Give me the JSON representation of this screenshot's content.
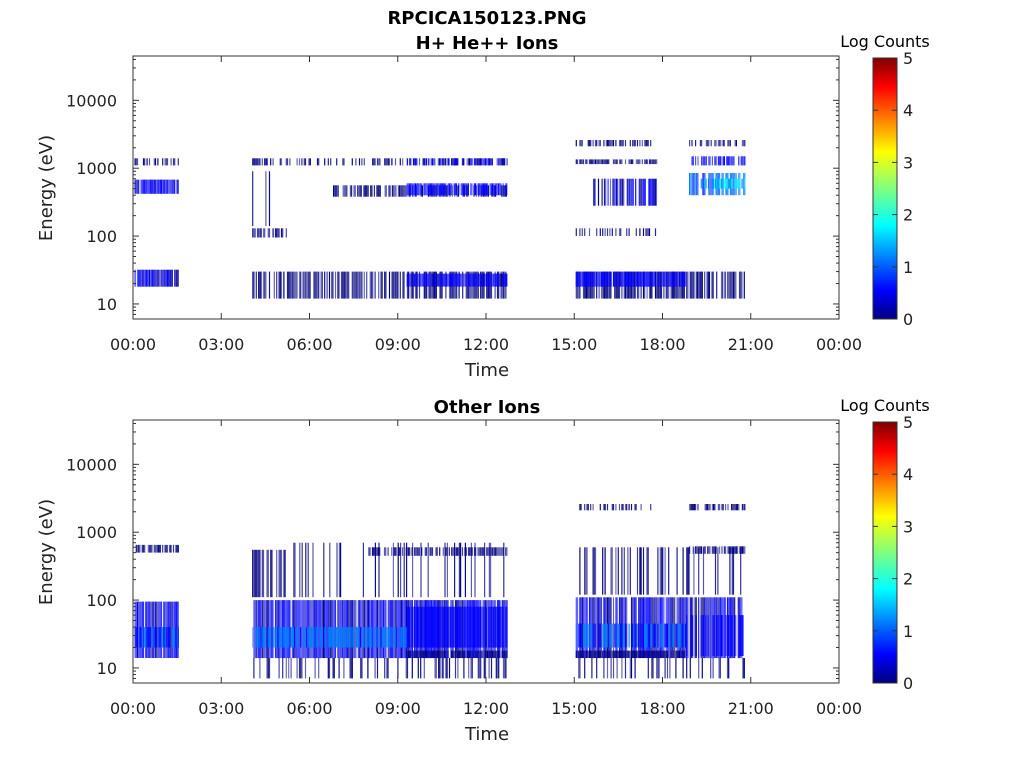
{
  "figure_title": "RPCICA150123.PNG",
  "colormap": [
    "#00007f",
    "#0000ff",
    "#007fff",
    "#00ffff",
    "#7fff7f",
    "#ffff00",
    "#ff7f00",
    "#ff0000",
    "#7f0000"
  ],
  "chart_data": [
    {
      "type": "heatmap",
      "title": "H+ He++ Ions",
      "xlabel": "Time",
      "ylabel": "Energy (eV)",
      "x_ticks": [
        "00:00",
        "03:00",
        "06:00",
        "09:00",
        "12:00",
        "15:00",
        "18:00",
        "21:00",
        "00:00"
      ],
      "x_range_hours": [
        0,
        24
      ],
      "y_ticks": [
        "10",
        "100",
        "1000",
        "10000"
      ],
      "y_scale": "log",
      "y_range": [
        6,
        45000
      ],
      "colorbar": {
        "label": "Log Counts",
        "ticks": [
          "0",
          "1",
          "2",
          "3",
          "4",
          "5"
        ],
        "range": [
          0,
          5
        ]
      },
      "grid": false,
      "blocks": [
        {
          "t": [
            0.05,
            1.55
          ],
          "e": [
            18,
            32
          ],
          "v": 0.35,
          "density": 0.95
        },
        {
          "t": [
            0.05,
            1.55
          ],
          "e": [
            420,
            680
          ],
          "v": 0.4,
          "density": 0.9
        },
        {
          "t": [
            0.05,
            1.55
          ],
          "e": [
            1100,
            1400
          ],
          "v": 0.2,
          "density": 0.6
        },
        {
          "t": [
            4.05,
            12.7
          ],
          "e": [
            12,
            30
          ],
          "v": 0.2,
          "density": 0.7
        },
        {
          "t": [
            9.3,
            12.7
          ],
          "e": [
            18,
            28
          ],
          "v": 0.4,
          "density": 0.95
        },
        {
          "t": [
            4.05,
            5.2
          ],
          "e": [
            95,
            130
          ],
          "v": 0.2,
          "density": 0.6
        },
        {
          "t": [
            4.05,
            4.9
          ],
          "e": [
            140,
            900
          ],
          "v": 0.1,
          "density": 0.25
        },
        {
          "t": [
            6.8,
            12.7
          ],
          "e": [
            380,
            560
          ],
          "v": 0.25,
          "density": 0.7
        },
        {
          "t": [
            9.3,
            12.7
          ],
          "e": [
            400,
            600
          ],
          "v": 0.45,
          "density": 0.9
        },
        {
          "t": [
            4.05,
            12.7
          ],
          "e": [
            1100,
            1400
          ],
          "v": 0.15,
          "density": 0.4
        },
        {
          "t": [
            9.3,
            12.7
          ],
          "e": [
            1100,
            1400
          ],
          "v": 0.35,
          "density": 0.7
        },
        {
          "t": [
            15.05,
            20.8
          ],
          "e": [
            12,
            30
          ],
          "v": 0.25,
          "density": 0.8
        },
        {
          "t": [
            15.05,
            18.8
          ],
          "e": [
            18,
            30
          ],
          "v": 0.45,
          "density": 0.95
        },
        {
          "t": [
            15.05,
            17.8
          ],
          "e": [
            100,
            130
          ],
          "v": 0.15,
          "density": 0.4
        },
        {
          "t": [
            15.6,
            17.8
          ],
          "e": [
            280,
            700
          ],
          "v": 0.35,
          "density": 0.6
        },
        {
          "t": [
            15.05,
            17.8
          ],
          "e": [
            1150,
            1350
          ],
          "v": 0.2,
          "density": 0.7
        },
        {
          "t": [
            15.05,
            17.8
          ],
          "e": [
            2100,
            2600
          ],
          "v": 0.15,
          "density": 0.6
        },
        {
          "t": [
            18.9,
            20.8
          ],
          "e": [
            400,
            850
          ],
          "v": 1.1,
          "density": 0.85
        },
        {
          "t": [
            19.3,
            20.8
          ],
          "e": [
            500,
            700
          ],
          "v": 1.6,
          "density": 0.8
        },
        {
          "t": [
            18.9,
            20.8
          ],
          "e": [
            1100,
            1500
          ],
          "v": 0.4,
          "density": 0.6
        },
        {
          "t": [
            18.9,
            20.8
          ],
          "e": [
            2100,
            2600
          ],
          "v": 0.2,
          "density": 0.5
        }
      ]
    },
    {
      "type": "heatmap",
      "title": "Other Ions",
      "xlabel": "Time",
      "ylabel": "Energy (eV)",
      "x_ticks": [
        "00:00",
        "03:00",
        "06:00",
        "09:00",
        "12:00",
        "15:00",
        "18:00",
        "21:00",
        "00:00"
      ],
      "x_range_hours": [
        0,
        24
      ],
      "y_ticks": [
        "10",
        "100",
        "1000",
        "10000"
      ],
      "y_scale": "log",
      "y_range": [
        6,
        45000
      ],
      "colorbar": {
        "label": "Log Counts",
        "ticks": [
          "0",
          "1",
          "2",
          "3",
          "4",
          "5"
        ],
        "range": [
          0,
          5
        ]
      },
      "grid": false,
      "blocks": [
        {
          "t": [
            0.05,
            1.55
          ],
          "e": [
            14,
            95
          ],
          "v": 0.4,
          "density": 0.95
        },
        {
          "t": [
            0.05,
            1.55
          ],
          "e": [
            20,
            40
          ],
          "v": 0.85,
          "density": 0.9
        },
        {
          "t": [
            0.05,
            1.55
          ],
          "e": [
            500,
            650
          ],
          "v": 0.25,
          "density": 0.7
        },
        {
          "t": [
            4.05,
            12.7
          ],
          "e": [
            14,
            100
          ],
          "v": 0.35,
          "density": 0.95
        },
        {
          "t": [
            4.05,
            9.3
          ],
          "e": [
            20,
            40
          ],
          "v": 1.2,
          "density": 0.85
        },
        {
          "t": [
            9.3,
            12.7
          ],
          "e": [
            20,
            80
          ],
          "v": 0.7,
          "density": 0.95
        },
        {
          "t": [
            9.3,
            12.7
          ],
          "e": [
            14,
            18
          ],
          "v": 0.2,
          "density": 0.95
        },
        {
          "t": [
            4.05,
            12.7
          ],
          "e": [
            7,
            14
          ],
          "v": 0.12,
          "density": 0.35
        },
        {
          "t": [
            4.05,
            5.2
          ],
          "e": [
            110,
            550
          ],
          "v": 0.25,
          "density": 0.55
        },
        {
          "t": [
            5.2,
            12.7
          ],
          "e": [
            110,
            700
          ],
          "v": 0.1,
          "density": 0.15
        },
        {
          "t": [
            8.0,
            12.7
          ],
          "e": [
            450,
            600
          ],
          "v": 0.25,
          "density": 0.7
        },
        {
          "t": [
            15.05,
            20.8
          ],
          "e": [
            14,
            110
          ],
          "v": 0.35,
          "density": 0.85
        },
        {
          "t": [
            15.05,
            18.8
          ],
          "e": [
            20,
            45
          ],
          "v": 1.0,
          "density": 0.9
        },
        {
          "t": [
            15.05,
            18.8
          ],
          "e": [
            14,
            18
          ],
          "v": 0.2,
          "density": 0.95
        },
        {
          "t": [
            18.8,
            20.8
          ],
          "e": [
            15,
            60
          ],
          "v": 0.6,
          "density": 0.6
        },
        {
          "t": [
            15.05,
            20.8
          ],
          "e": [
            7,
            14
          ],
          "v": 0.12,
          "density": 0.3
        },
        {
          "t": [
            15.05,
            20.8
          ],
          "e": [
            120,
            600
          ],
          "v": 0.12,
          "density": 0.25
        },
        {
          "t": [
            18.9,
            20.8
          ],
          "e": [
            480,
            620
          ],
          "v": 0.25,
          "density": 0.7
        },
        {
          "t": [
            15.05,
            17.8
          ],
          "e": [
            2100,
            2600
          ],
          "v": 0.15,
          "density": 0.4
        },
        {
          "t": [
            18.9,
            20.8
          ],
          "e": [
            2100,
            2600
          ],
          "v": 0.15,
          "density": 0.5
        }
      ]
    }
  ]
}
